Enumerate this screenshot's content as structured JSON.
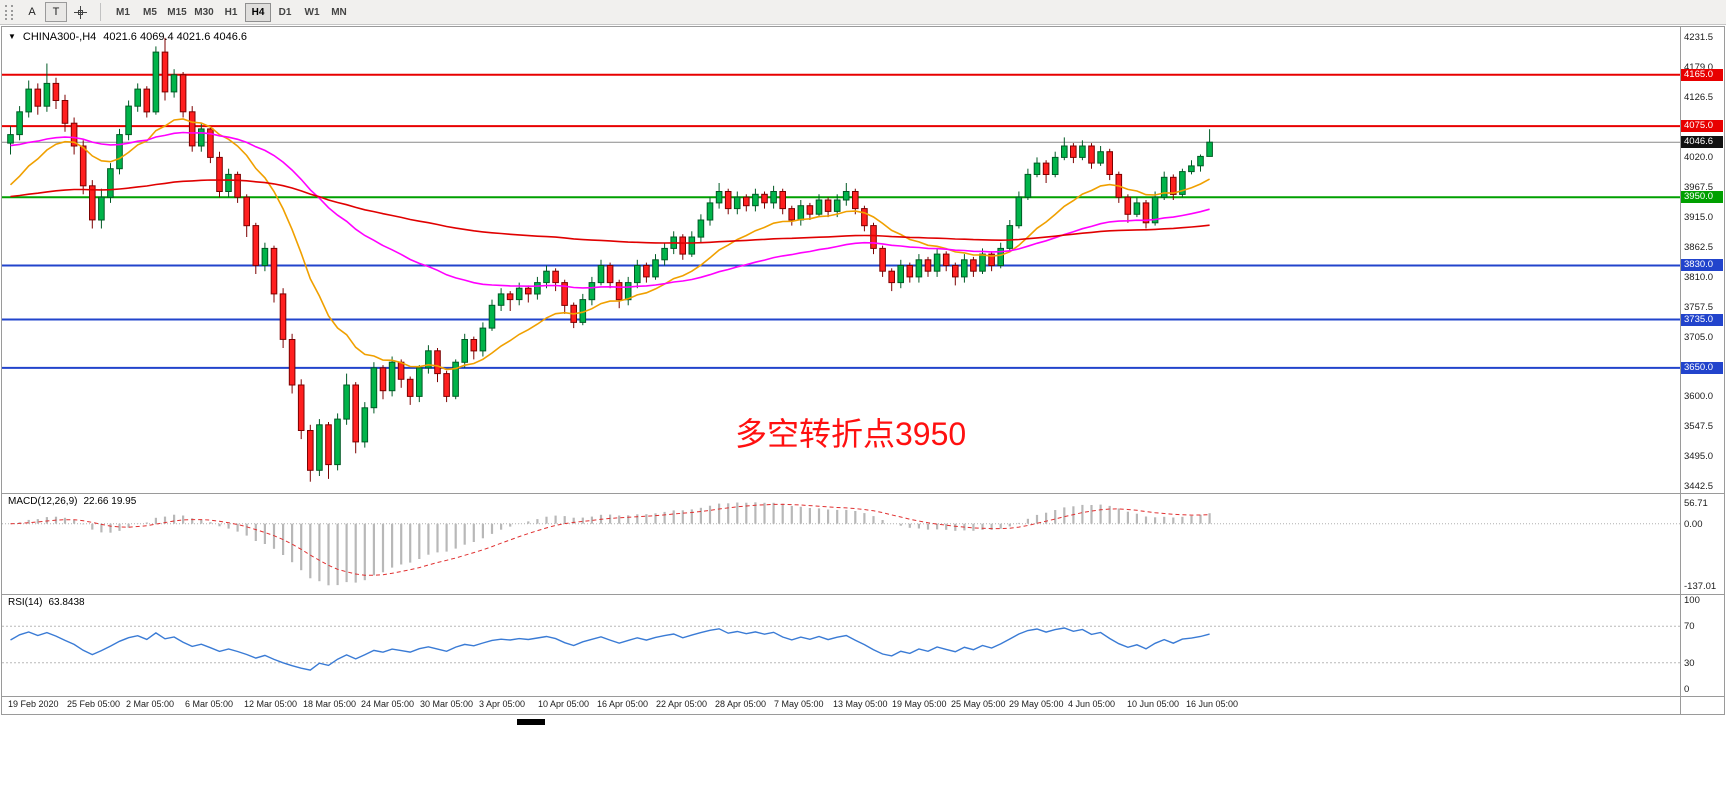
{
  "toolbar": {
    "tools": [
      {
        "label": "A"
      },
      {
        "label": "T"
      }
    ],
    "timeframes": [
      {
        "label": "M1"
      },
      {
        "label": "M5"
      },
      {
        "label": "M15"
      },
      {
        "label": "M30"
      },
      {
        "label": "H1"
      },
      {
        "label": "H4",
        "active": true
      },
      {
        "label": "D1"
      },
      {
        "label": "W1"
      },
      {
        "label": "MN"
      }
    ]
  },
  "chart": {
    "title": "CHINA300-,H4",
    "quote_text": "4021.6 4069.4 4021.6 4046.6"
  },
  "chart_data": {
    "type": "candlestick",
    "symbol": "CHINA300-",
    "timeframe": "H4",
    "current_quote": {
      "open": 4021.6,
      "high": 4069.4,
      "low": 4021.6,
      "close": 4046.6
    },
    "x_labels": [
      "19 Feb 2020",
      "25 Feb 05:00",
      "2 Mar 05:00",
      "6 Mar 05:00",
      "12 Mar 05:00",
      "18 Mar 05:00",
      "24 Mar 05:00",
      "30 Mar 05:00",
      "3 Apr 05:00",
      "10 Apr 05:00",
      "16 Apr 05:00",
      "22 Apr 05:00",
      "28 Apr 05:00",
      "7 May 05:00",
      "13 May 05:00",
      "19 May 05:00",
      "25 May 05:00",
      "29 May 05:00",
      "4 Jun 05:00",
      "10 Jun 05:00",
      "16 Jun 05:00"
    ],
    "price_pane": {
      "ylim": [
        3442.5,
        4231.5
      ],
      "y_ticks": [
        4231.5,
        4179.0,
        4126.5,
        4020.0,
        3967.5,
        3915.0,
        3862.5,
        3810.0,
        3757.5,
        3705.0,
        3600.0,
        3547.5,
        3495.0,
        3442.5
      ],
      "up_color": "#00b44a",
      "up_border": "#005a25",
      "down_color": "#ff1f1f",
      "down_border": "#7c0000",
      "hlines": [
        {
          "value": 4165.0,
          "color": "#e80000",
          "width": 2,
          "label": "4165.0"
        },
        {
          "value": 4075.0,
          "color": "#e80000",
          "width": 2,
          "label": "4075.0"
        },
        {
          "value": 3950.0,
          "color": "#00a000",
          "width": 2,
          "label": "3950.0"
        },
        {
          "value": 3830.0,
          "color": "#2244cc",
          "width": 2,
          "label": "3830.0"
        },
        {
          "value": 3735.0,
          "color": "#2244cc",
          "width": 2,
          "label": "3735.0"
        },
        {
          "value": 3650.0,
          "color": "#2244cc",
          "width": 2,
          "label": "3650.0"
        }
      ],
      "current_price": {
        "value": 4046.6,
        "line_color": "#8a8a8a",
        "label": "4046.6",
        "label_bg": "#111111"
      },
      "moving_averages": [
        {
          "name": "ma-fast-orange",
          "color": "#f0a000",
          "period": 16,
          "seed": 3960,
          "width": 1.6
        },
        {
          "name": "ma-mid-magenta",
          "color": "#ff00ff",
          "period": 55,
          "seed": 4040,
          "width": 1.6
        },
        {
          "name": "ma-slow-red",
          "color": "#e00000",
          "period": 170,
          "seed": 3950,
          "width": 1.6
        }
      ],
      "annotation": {
        "text": "多空转折点3950",
        "color": "#ff1010",
        "price": 3578,
        "x_frac": 0.437,
        "font_px": 32
      },
      "candles": [
        [
          4045,
          4075,
          4025,
          4060
        ],
        [
          4060,
          4110,
          4050,
          4100
        ],
        [
          4100,
          4155,
          4090,
          4140
        ],
        [
          4140,
          4150,
          4095,
          4110
        ],
        [
          4110,
          4185,
          4100,
          4150
        ],
        [
          4150,
          4160,
          4105,
          4120
        ],
        [
          4120,
          4130,
          4065,
          4080
        ],
        [
          4080,
          4090,
          4025,
          4040
        ],
        [
          4040,
          4050,
          3955,
          3970
        ],
        [
          3970,
          3980,
          3895,
          3910
        ],
        [
          3910,
          3965,
          3895,
          3950
        ],
        [
          3950,
          4010,
          3940,
          4000
        ],
        [
          4000,
          4070,
          3990,
          4060
        ],
        [
          4060,
          4120,
          4050,
          4110
        ],
        [
          4110,
          4150,
          4100,
          4140
        ],
        [
          4140,
          4145,
          4090,
          4100
        ],
        [
          4100,
          4215,
          4095,
          4205
        ],
        [
          4205,
          4230,
          4120,
          4135
        ],
        [
          4135,
          4175,
          4125,
          4165
        ],
        [
          4165,
          4170,
          4090,
          4100
        ],
        [
          4100,
          4110,
          4030,
          4040
        ],
        [
          4040,
          4080,
          4030,
          4070
        ],
        [
          4070,
          4075,
          4010,
          4020
        ],
        [
          4020,
          4030,
          3950,
          3960
        ],
        [
          3960,
          4000,
          3950,
          3990
        ],
        [
          3990,
          3995,
          3940,
          3950
        ],
        [
          3950,
          3955,
          3880,
          3900
        ],
        [
          3900,
          3905,
          3815,
          3830
        ],
        [
          3830,
          3870,
          3820,
          3860
        ],
        [
          3860,
          3865,
          3765,
          3780
        ],
        [
          3780,
          3790,
          3685,
          3700
        ],
        [
          3700,
          3710,
          3605,
          3620
        ],
        [
          3620,
          3630,
          3525,
          3540
        ],
        [
          3540,
          3550,
          3450,
          3470
        ],
        [
          3470,
          3560,
          3460,
          3550
        ],
        [
          3550,
          3555,
          3455,
          3480
        ],
        [
          3480,
          3570,
          3470,
          3560
        ],
        [
          3560,
          3640,
          3550,
          3620
        ],
        [
          3620,
          3625,
          3500,
          3520
        ],
        [
          3520,
          3590,
          3510,
          3580
        ],
        [
          3580,
          3660,
          3570,
          3650
        ],
        [
          3650,
          3655,
          3595,
          3610
        ],
        [
          3610,
          3670,
          3600,
          3660
        ],
        [
          3660,
          3665,
          3615,
          3630
        ],
        [
          3630,
          3635,
          3585,
          3600
        ],
        [
          3600,
          3655,
          3590,
          3650
        ],
        [
          3650,
          3690,
          3640,
          3680
        ],
        [
          3680,
          3685,
          3625,
          3640
        ],
        [
          3640,
          3645,
          3590,
          3600
        ],
        [
          3600,
          3665,
          3595,
          3660
        ],
        [
          3660,
          3710,
          3650,
          3700
        ],
        [
          3700,
          3705,
          3665,
          3680
        ],
        [
          3680,
          3730,
          3670,
          3720
        ],
        [
          3720,
          3770,
          3715,
          3760
        ],
        [
          3760,
          3790,
          3750,
          3780
        ],
        [
          3780,
          3785,
          3750,
          3770
        ],
        [
          3770,
          3800,
          3760,
          3790
        ],
        [
          3790,
          3795,
          3765,
          3780
        ],
        [
          3780,
          3810,
          3770,
          3800
        ],
        [
          3800,
          3830,
          3790,
          3820
        ],
        [
          3820,
          3825,
          3785,
          3800
        ],
        [
          3800,
          3805,
          3745,
          3760
        ],
        [
          3760,
          3765,
          3720,
          3730
        ],
        [
          3730,
          3780,
          3725,
          3770
        ],
        [
          3770,
          3810,
          3760,
          3800
        ],
        [
          3800,
          3840,
          3795,
          3830
        ],
        [
          3830,
          3835,
          3790,
          3800
        ],
        [
          3800,
          3805,
          3755,
          3770
        ],
        [
          3770,
          3810,
          3760,
          3800
        ],
        [
          3800,
          3840,
          3790,
          3830
        ],
        [
          3830,
          3835,
          3800,
          3810
        ],
        [
          3810,
          3850,
          3805,
          3840
        ],
        [
          3840,
          3870,
          3830,
          3860
        ],
        [
          3860,
          3890,
          3850,
          3880
        ],
        [
          3880,
          3885,
          3840,
          3850
        ],
        [
          3850,
          3890,
          3845,
          3880
        ],
        [
          3880,
          3920,
          3870,
          3910
        ],
        [
          3910,
          3950,
          3900,
          3940
        ],
        [
          3940,
          3975,
          3930,
          3960
        ],
        [
          3960,
          3965,
          3920,
          3930
        ],
        [
          3930,
          3960,
          3920,
          3950
        ],
        [
          3950,
          3955,
          3925,
          3935
        ],
        [
          3935,
          3965,
          3925,
          3955
        ],
        [
          3955,
          3960,
          3930,
          3940
        ],
        [
          3940,
          3970,
          3930,
          3960
        ],
        [
          3960,
          3965,
          3920,
          3930
        ],
        [
          3930,
          3935,
          3900,
          3910
        ],
        [
          3910,
          3945,
          3900,
          3935
        ],
        [
          3935,
          3940,
          3910,
          3920
        ],
        [
          3920,
          3955,
          3915,
          3945
        ],
        [
          3945,
          3950,
          3915,
          3925
        ],
        [
          3925,
          3955,
          3915,
          3945
        ],
        [
          3945,
          3975,
          3935,
          3960
        ],
        [
          3960,
          3965,
          3920,
          3930
        ],
        [
          3930,
          3935,
          3890,
          3900
        ],
        [
          3900,
          3905,
          3850,
          3860
        ],
        [
          3860,
          3865,
          3810,
          3820
        ],
        [
          3820,
          3825,
          3785,
          3800
        ],
        [
          3800,
          3840,
          3790,
          3830
        ],
        [
          3830,
          3835,
          3800,
          3810
        ],
        [
          3810,
          3850,
          3800,
          3840
        ],
        [
          3840,
          3845,
          3810,
          3820
        ],
        [
          3820,
          3860,
          3810,
          3850
        ],
        [
          3850,
          3855,
          3820,
          3830
        ],
        [
          3830,
          3835,
          3795,
          3810
        ],
        [
          3810,
          3850,
          3800,
          3840
        ],
        [
          3840,
          3845,
          3810,
          3820
        ],
        [
          3820,
          3860,
          3815,
          3850
        ],
        [
          3850,
          3855,
          3820,
          3830
        ],
        [
          3830,
          3870,
          3825,
          3860
        ],
        [
          3860,
          3910,
          3855,
          3900
        ],
        [
          3900,
          3960,
          3895,
          3950
        ],
        [
          3950,
          4000,
          3945,
          3990
        ],
        [
          3990,
          4020,
          3985,
          4010
        ],
        [
          4010,
          4015,
          3975,
          3990
        ],
        [
          3990,
          4030,
          3985,
          4020
        ],
        [
          4020,
          4055,
          4015,
          4040
        ],
        [
          4040,
          4045,
          4010,
          4020
        ],
        [
          4020,
          4050,
          4015,
          4040
        ],
        [
          4040,
          4045,
          4000,
          4010
        ],
        [
          4010,
          4040,
          4005,
          4030
        ],
        [
          4030,
          4035,
          3980,
          3990
        ],
        [
          3990,
          3995,
          3940,
          3950
        ],
        [
          3950,
          3955,
          3905,
          3920
        ],
        [
          3920,
          3950,
          3915,
          3940
        ],
        [
          3940,
          3945,
          3895,
          3905
        ],
        [
          3905,
          3960,
          3900,
          3950
        ],
        [
          3950,
          3995,
          3945,
          3985
        ],
        [
          3985,
          3990,
          3945,
          3955
        ],
        [
          3955,
          4000,
          3950,
          3995
        ],
        [
          3995,
          4015,
          3990,
          4005
        ],
        [
          4005,
          4025,
          3995,
          4021.6
        ],
        [
          4021.6,
          4069.4,
          4021.6,
          4046.6
        ]
      ]
    },
    "macd_pane": {
      "label": "MACD(12,26,9)",
      "values_text": "22.66 19.95",
      "params": [
        12,
        26,
        9
      ],
      "scale_labels": [
        "56.71",
        "0.00",
        "-137.01"
      ],
      "histogram_color": "#b8b8b8",
      "signal_color": "#e03030"
    },
    "rsi_pane": {
      "label": "RSI(14)",
      "value_text": "63.8438",
      "period": 14,
      "levels": [
        70,
        30
      ],
      "scale_labels": [
        "100",
        "70",
        "30",
        "0"
      ],
      "line_color": "#3a7bd5"
    }
  }
}
